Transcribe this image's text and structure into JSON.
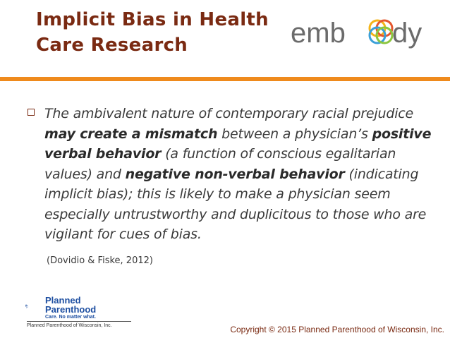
{
  "slide": {
    "title_line1": "Implicit Bias in Health",
    "title_line2": "Care Research",
    "bullet": {
      "seg1": "The ambivalent nature of contemporary racial prejudice ",
      "seg2": "may create a mismatch",
      "seg3": " between a physician’s ",
      "seg4": "positive verbal behavior",
      "seg5": " (a function of conscious egalitarian values) and ",
      "seg6": "negative non-verbal behavior",
      "seg7": " (indicating implicit bias); this is likely to make a physician seem especially untrustworthy and duplicitous to those who are vigilant for cues of bias."
    },
    "citation": "(Dovidio & Fiske, 2012)",
    "copyright": "Copyright © 2015 Planned Parenthood of Wisconsin, Inc."
  },
  "logos": {
    "embody_text_left": "emb",
    "embody_text_right": "dy",
    "pp_name_line1": "Planned",
    "pp_name_line2": "Parenthood",
    "pp_tagline": "Care. No matter what.",
    "pp_org": "Planned Parenthood of Wisconsin, Inc."
  },
  "colors": {
    "title": "#7a2a12",
    "accent_rule": "#ef8a1c",
    "pp_blue": "#1e4fa1"
  }
}
